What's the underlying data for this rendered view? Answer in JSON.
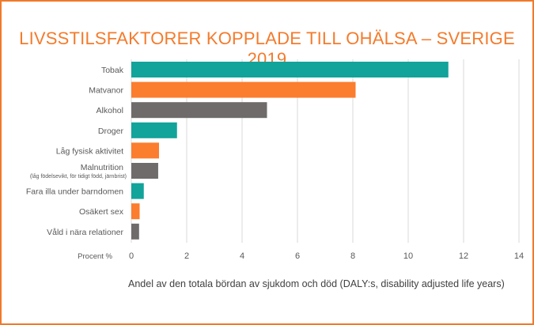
{
  "colors": {
    "border": "#f07a2a",
    "title": "#f47b2c",
    "teal": "#12a39a",
    "orange": "#fb7d2e",
    "gray": "#6f6b6b",
    "grid": "#d9d9d9",
    "text": "#595959"
  },
  "chart_data": {
    "type": "bar",
    "orientation": "horizontal",
    "title": "LIVSSTILSFAKTORER KOPPLADE TILL OHÄLSA – SVERIGE 2019",
    "xlabel": "Procent %",
    "caption": "Andel av den totala bördan av sjukdom och död (DALY:s, disability adjusted life years)",
    "xlim": [
      0,
      14
    ],
    "xticks": [
      0,
      2,
      4,
      6,
      8,
      10,
      12,
      14
    ],
    "grid": true,
    "categories": [
      {
        "label": "Tobak",
        "sublabel": "",
        "value": 11.45,
        "color": "teal"
      },
      {
        "label": "Matvanor",
        "sublabel": "",
        "value": 8.1,
        "color": "orange"
      },
      {
        "label": "Alkohol",
        "sublabel": "",
        "value": 4.9,
        "color": "gray"
      },
      {
        "label": "Droger",
        "sublabel": "",
        "value": 1.65,
        "color": "teal"
      },
      {
        "label": "Låg fysisk aktivitet",
        "sublabel": "",
        "value": 1.0,
        "color": "orange"
      },
      {
        "label": "Malnutrition",
        "sublabel": "(låg födelsevikt, för tidigt född, järnbrist)",
        "value": 0.97,
        "color": "gray"
      },
      {
        "label": "Fara illa under barndomen",
        "sublabel": "",
        "value": 0.45,
        "color": "teal"
      },
      {
        "label": "Osäkert sex",
        "sublabel": "",
        "value": 0.3,
        "color": "orange"
      },
      {
        "label": "Våld i nära relationer",
        "sublabel": "",
        "value": 0.28,
        "color": "gray"
      }
    ]
  }
}
